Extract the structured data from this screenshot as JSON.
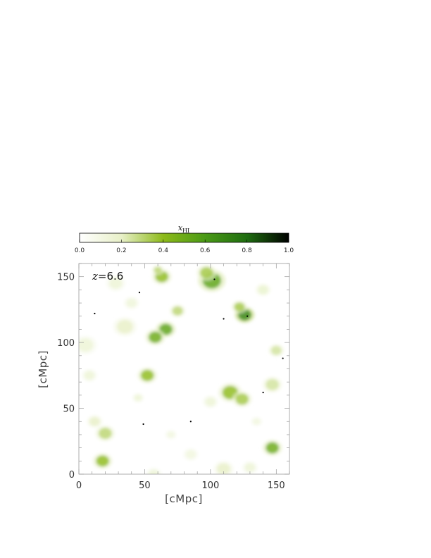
{
  "chart_data": {
    "type": "heatmap",
    "title": "",
    "xlabel": "[cMpc]",
    "ylabel": "[cMpc]",
    "xlim": [
      0,
      160
    ],
    "ylim": [
      0,
      160
    ],
    "x_ticks": [
      "0",
      "50",
      "100",
      "150"
    ],
    "y_ticks": [
      "0",
      "50",
      "100",
      "150"
    ],
    "annotation": "z=6.6",
    "annotation_var": "z",
    "annotation_value": "6.6",
    "colorbar": {
      "label": "x",
      "label_subscript": "HI",
      "range": [
        0.0,
        1.0
      ],
      "ticks": [
        "0.0",
        "0.2",
        "0.4",
        "0.6",
        "0.8",
        "1.0"
      ],
      "colors": [
        "#ffffff",
        "#e8f0c8",
        "#8dba1a",
        "#4a9a16",
        "#1f6d10",
        "#000000"
      ]
    },
    "regions": [
      {
        "x": 101,
        "y": 147,
        "r": 7,
        "value": 0.55
      },
      {
        "x": 97,
        "y": 153,
        "r": 5,
        "value": 0.35
      },
      {
        "x": 126,
        "y": 121,
        "r": 5,
        "value": 0.7
      },
      {
        "x": 122,
        "y": 127,
        "r": 4,
        "value": 0.35
      },
      {
        "x": 63,
        "y": 150,
        "r": 5,
        "value": 0.4
      },
      {
        "x": 60,
        "y": 155,
        "r": 3,
        "value": 0.3
      },
      {
        "x": 66,
        "y": 110,
        "r": 5,
        "value": 0.55
      },
      {
        "x": 58,
        "y": 104,
        "r": 5,
        "value": 0.5
      },
      {
        "x": 75,
        "y": 124,
        "r": 4,
        "value": 0.3
      },
      {
        "x": 35,
        "y": 112,
        "r": 6,
        "value": 0.2
      },
      {
        "x": 52,
        "y": 75,
        "r": 5,
        "value": 0.4
      },
      {
        "x": 115,
        "y": 62,
        "r": 6,
        "value": 0.4
      },
      {
        "x": 124,
        "y": 57,
        "r": 5,
        "value": 0.35
      },
      {
        "x": 147,
        "y": 68,
        "r": 5,
        "value": 0.25
      },
      {
        "x": 150,
        "y": 94,
        "r": 4,
        "value": 0.25
      },
      {
        "x": 147,
        "y": 20,
        "r": 5,
        "value": 0.5
      },
      {
        "x": 18,
        "y": 10,
        "r": 5,
        "value": 0.4
      },
      {
        "x": 20,
        "y": 31,
        "r": 5,
        "value": 0.3
      },
      {
        "x": 12,
        "y": 40,
        "r": 4,
        "value": 0.2
      },
      {
        "x": 5,
        "y": 98,
        "r": 6,
        "value": 0.15
      },
      {
        "x": 28,
        "y": 145,
        "r": 5,
        "value": 0.15
      },
      {
        "x": 45,
        "y": 58,
        "r": 3,
        "value": 0.15
      },
      {
        "x": 110,
        "y": 4,
        "r": 5,
        "value": 0.2
      },
      {
        "x": 130,
        "y": 5,
        "r": 4,
        "value": 0.15
      },
      {
        "x": 57,
        "y": 0,
        "r": 4,
        "value": 0.15
      },
      {
        "x": 85,
        "y": 15,
        "r": 4,
        "value": 0.12
      },
      {
        "x": 140,
        "y": 140,
        "r": 4,
        "value": 0.18
      },
      {
        "x": 8,
        "y": 75,
        "r": 4,
        "value": 0.15
      },
      {
        "x": 100,
        "y": 55,
        "r": 4,
        "value": 0.15
      },
      {
        "x": 135,
        "y": 40,
        "r": 3,
        "value": 0.12
      },
      {
        "x": 70,
        "y": 30,
        "r": 3,
        "value": 0.12
      },
      {
        "x": 40,
        "y": 130,
        "r": 4,
        "value": 0.14
      }
    ],
    "dark_points": [
      {
        "x": 12,
        "y": 122
      },
      {
        "x": 128,
        "y": 120
      },
      {
        "x": 103,
        "y": 148
      },
      {
        "x": 85,
        "y": 40
      },
      {
        "x": 46,
        "y": 138
      },
      {
        "x": 140,
        "y": 62
      },
      {
        "x": 155,
        "y": 88
      },
      {
        "x": 49,
        "y": 38
      },
      {
        "x": 110,
        "y": 118
      }
    ]
  }
}
